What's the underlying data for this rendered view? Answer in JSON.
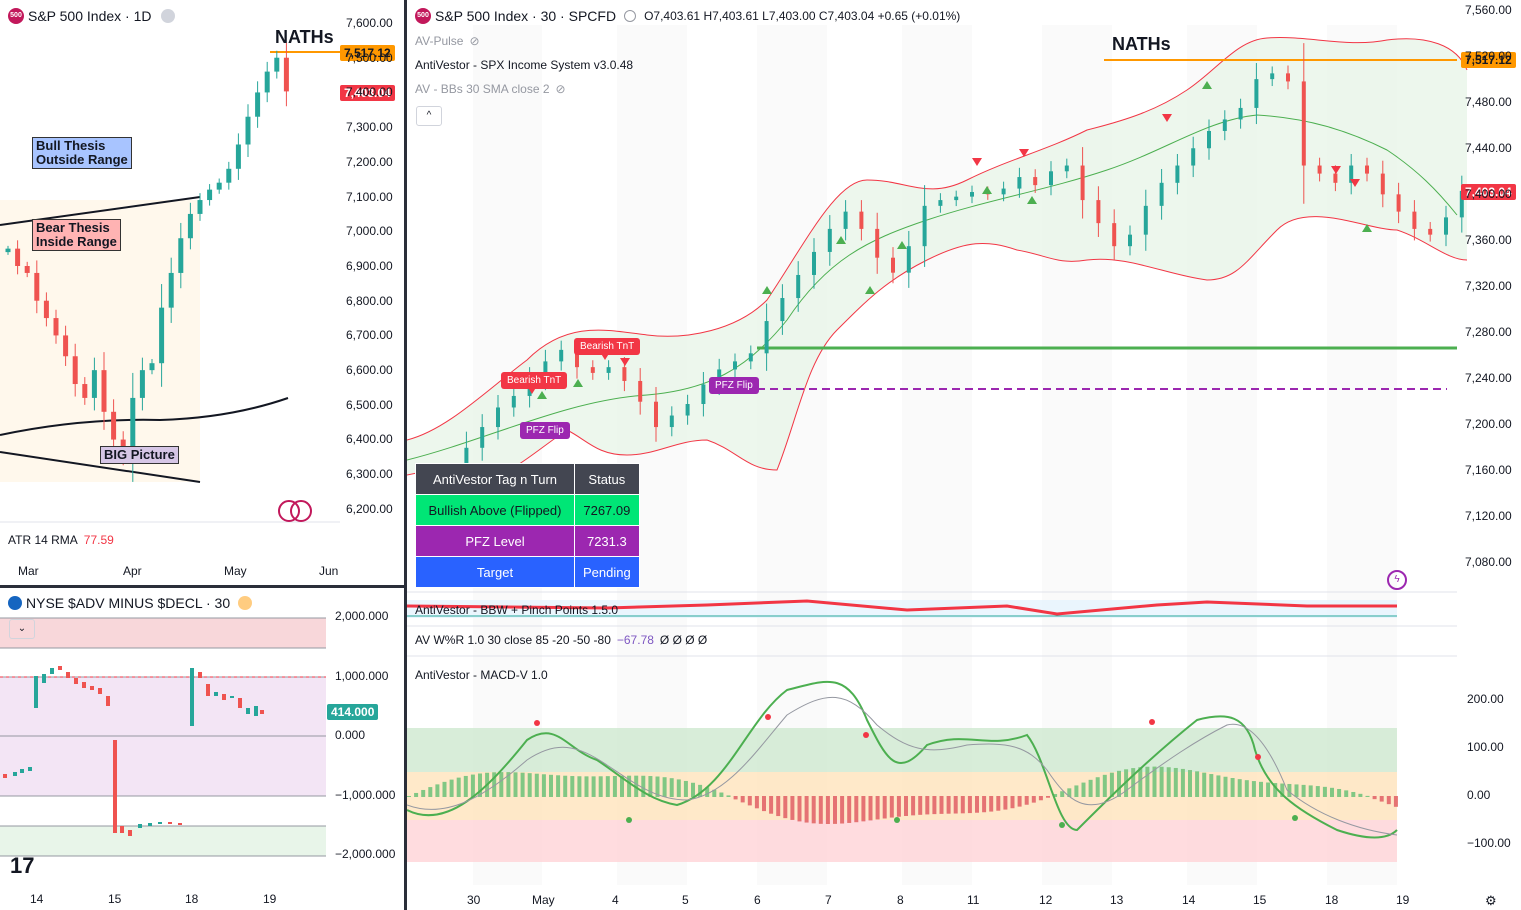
{
  "left_top": {
    "symbol_badge": "500",
    "title": "S&P 500 Index · 1D",
    "atr_label": "ATR 14 RMA",
    "atr_value": "77.59",
    "y_ticks": [
      "7,600.00",
      "7,500.00",
      "7,400.00",
      "7,300.00",
      "7,200.00",
      "7,100.00",
      "7,000.00",
      "6,900.00",
      "6,800.00",
      "6,700.00",
      "6,600.00",
      "6,500.00",
      "6,400.00",
      "6,300.00",
      "6,200.00"
    ],
    "x_ticks": [
      "Mar",
      "Apr",
      "May",
      "Jun"
    ],
    "nath_label": "NATHs",
    "ath_tag": "7,517.12",
    "last_tag": "7,403.04",
    "anno_bull": [
      "Bull Thesis",
      "Outside Range"
    ],
    "anno_bear": [
      "Bear Thesis",
      "Inside Range"
    ],
    "anno_big": "BIG Picture"
  },
  "left_bottom": {
    "title": "NYSE $ADV MINUS $DECL · 30",
    "y_ticks": [
      "2,000.000",
      "1,000.000",
      "0.000",
      "−1,000.000",
      "−2,000.000"
    ],
    "x_ticks": [
      "14",
      "15",
      "18",
      "19"
    ],
    "last_tag": "414.000"
  },
  "main": {
    "symbol_badge": "500",
    "title": "S&P 500 Index · 30 · SPCFD",
    "ohlc": "O7,403.61 H7,403.61 L7,403.00 C7,403.04 +0.65 (+0.01%)",
    "indicators": [
      "AV-Pulse",
      "AntiVestor - SPX Income System v3.0.48",
      "AV - BBs 30 SMA close 2"
    ],
    "y_ticks": [
      "7,560.00",
      "7,520.00",
      "7,480.00",
      "7,440.00",
      "7,400.00",
      "7,360.00",
      "7,320.00",
      "7,280.00",
      "7,240.00",
      "7,200.00",
      "7,160.00",
      "7,120.00",
      "7,080.00"
    ],
    "x_ticks": [
      "30",
      "May",
      "4",
      "5",
      "6",
      "7",
      "8",
      "11",
      "12",
      "13",
      "14",
      "15",
      "18",
      "19"
    ],
    "nath_label": "NATHs",
    "ath_tag": "7,517.12",
    "last_tag": "7,403.04",
    "chips": {
      "bearish1": "Bearish TnT",
      "bearish2": "Bearish TnT",
      "pfz1": "PFZ Flip",
      "pfz2": "PFZ Flip"
    },
    "table": {
      "header": [
        "AntiVestor Tag n Turn",
        "Status"
      ],
      "rows": [
        [
          "Bullish Above (Flipped)",
          "7267.09"
        ],
        [
          "PFZ Level",
          "7231.3"
        ],
        [
          "Target",
          "Pending"
        ]
      ]
    },
    "bbw_label": "AntiVestor - BBW + Pinch Points 1.5.0",
    "wr_label": "AV W%R 1.0 30 close 85 -20 -50 -80",
    "wr_value": "−67.78",
    "wr_zeros": "Ø Ø Ø Ø",
    "macd_label": "AntiVestor - MACD-V 1.0",
    "macd_ticks": [
      "200.00",
      "100.00",
      "0.00",
      "−100.00"
    ]
  },
  "colors": {
    "up": "#26a69a",
    "down": "#ef5350",
    "green": "#4caf50",
    "red": "#f23645",
    "orange": "#ff9800",
    "purple": "#9c27b0"
  },
  "chart_data": [
    {
      "type": "candlestick",
      "title": "S&P 500 Index · 1D",
      "ylim": [
        6150,
        7650
      ],
      "approx_closes": [
        6950,
        6900,
        6880,
        6800,
        6750,
        6700,
        6640,
        6560,
        6520,
        6600,
        6480,
        6400,
        6350,
        6520,
        6600,
        6620,
        6780,
        6880,
        6980,
        7050,
        7090,
        7120,
        7140,
        7180,
        7250,
        7330,
        7400,
        7460,
        7500,
        7403
      ]
    },
    {
      "type": "candlestick",
      "title": "S&P 500 Index · 30 · SPCFD",
      "ylim": [
        7040,
        7570
      ],
      "series": [
        {
          "name": "close",
          "values": [
            7125,
            7138,
            7155,
            7180,
            7198,
            7215,
            7225,
            7240,
            7255,
            7265,
            7250,
            7245,
            7250,
            7238,
            7220,
            7198,
            7208,
            7218,
            7235,
            7248,
            7255,
            7262,
            7290,
            7310,
            7330,
            7350,
            7370,
            7385,
            7370,
            7345,
            7332,
            7355,
            7390,
            7395,
            7398,
            7402,
            7400,
            7405,
            7415,
            7408,
            7420,
            7425,
            7395,
            7375,
            7355,
            7365,
            7390,
            7410,
            7425,
            7440,
            7455,
            7465,
            7475,
            7500,
            7505,
            7498,
            7425,
            7418,
            7410,
            7425,
            7418,
            7400,
            7385,
            7370,
            7365,
            7380,
            7403
          ]
        }
      ]
    }
  ]
}
